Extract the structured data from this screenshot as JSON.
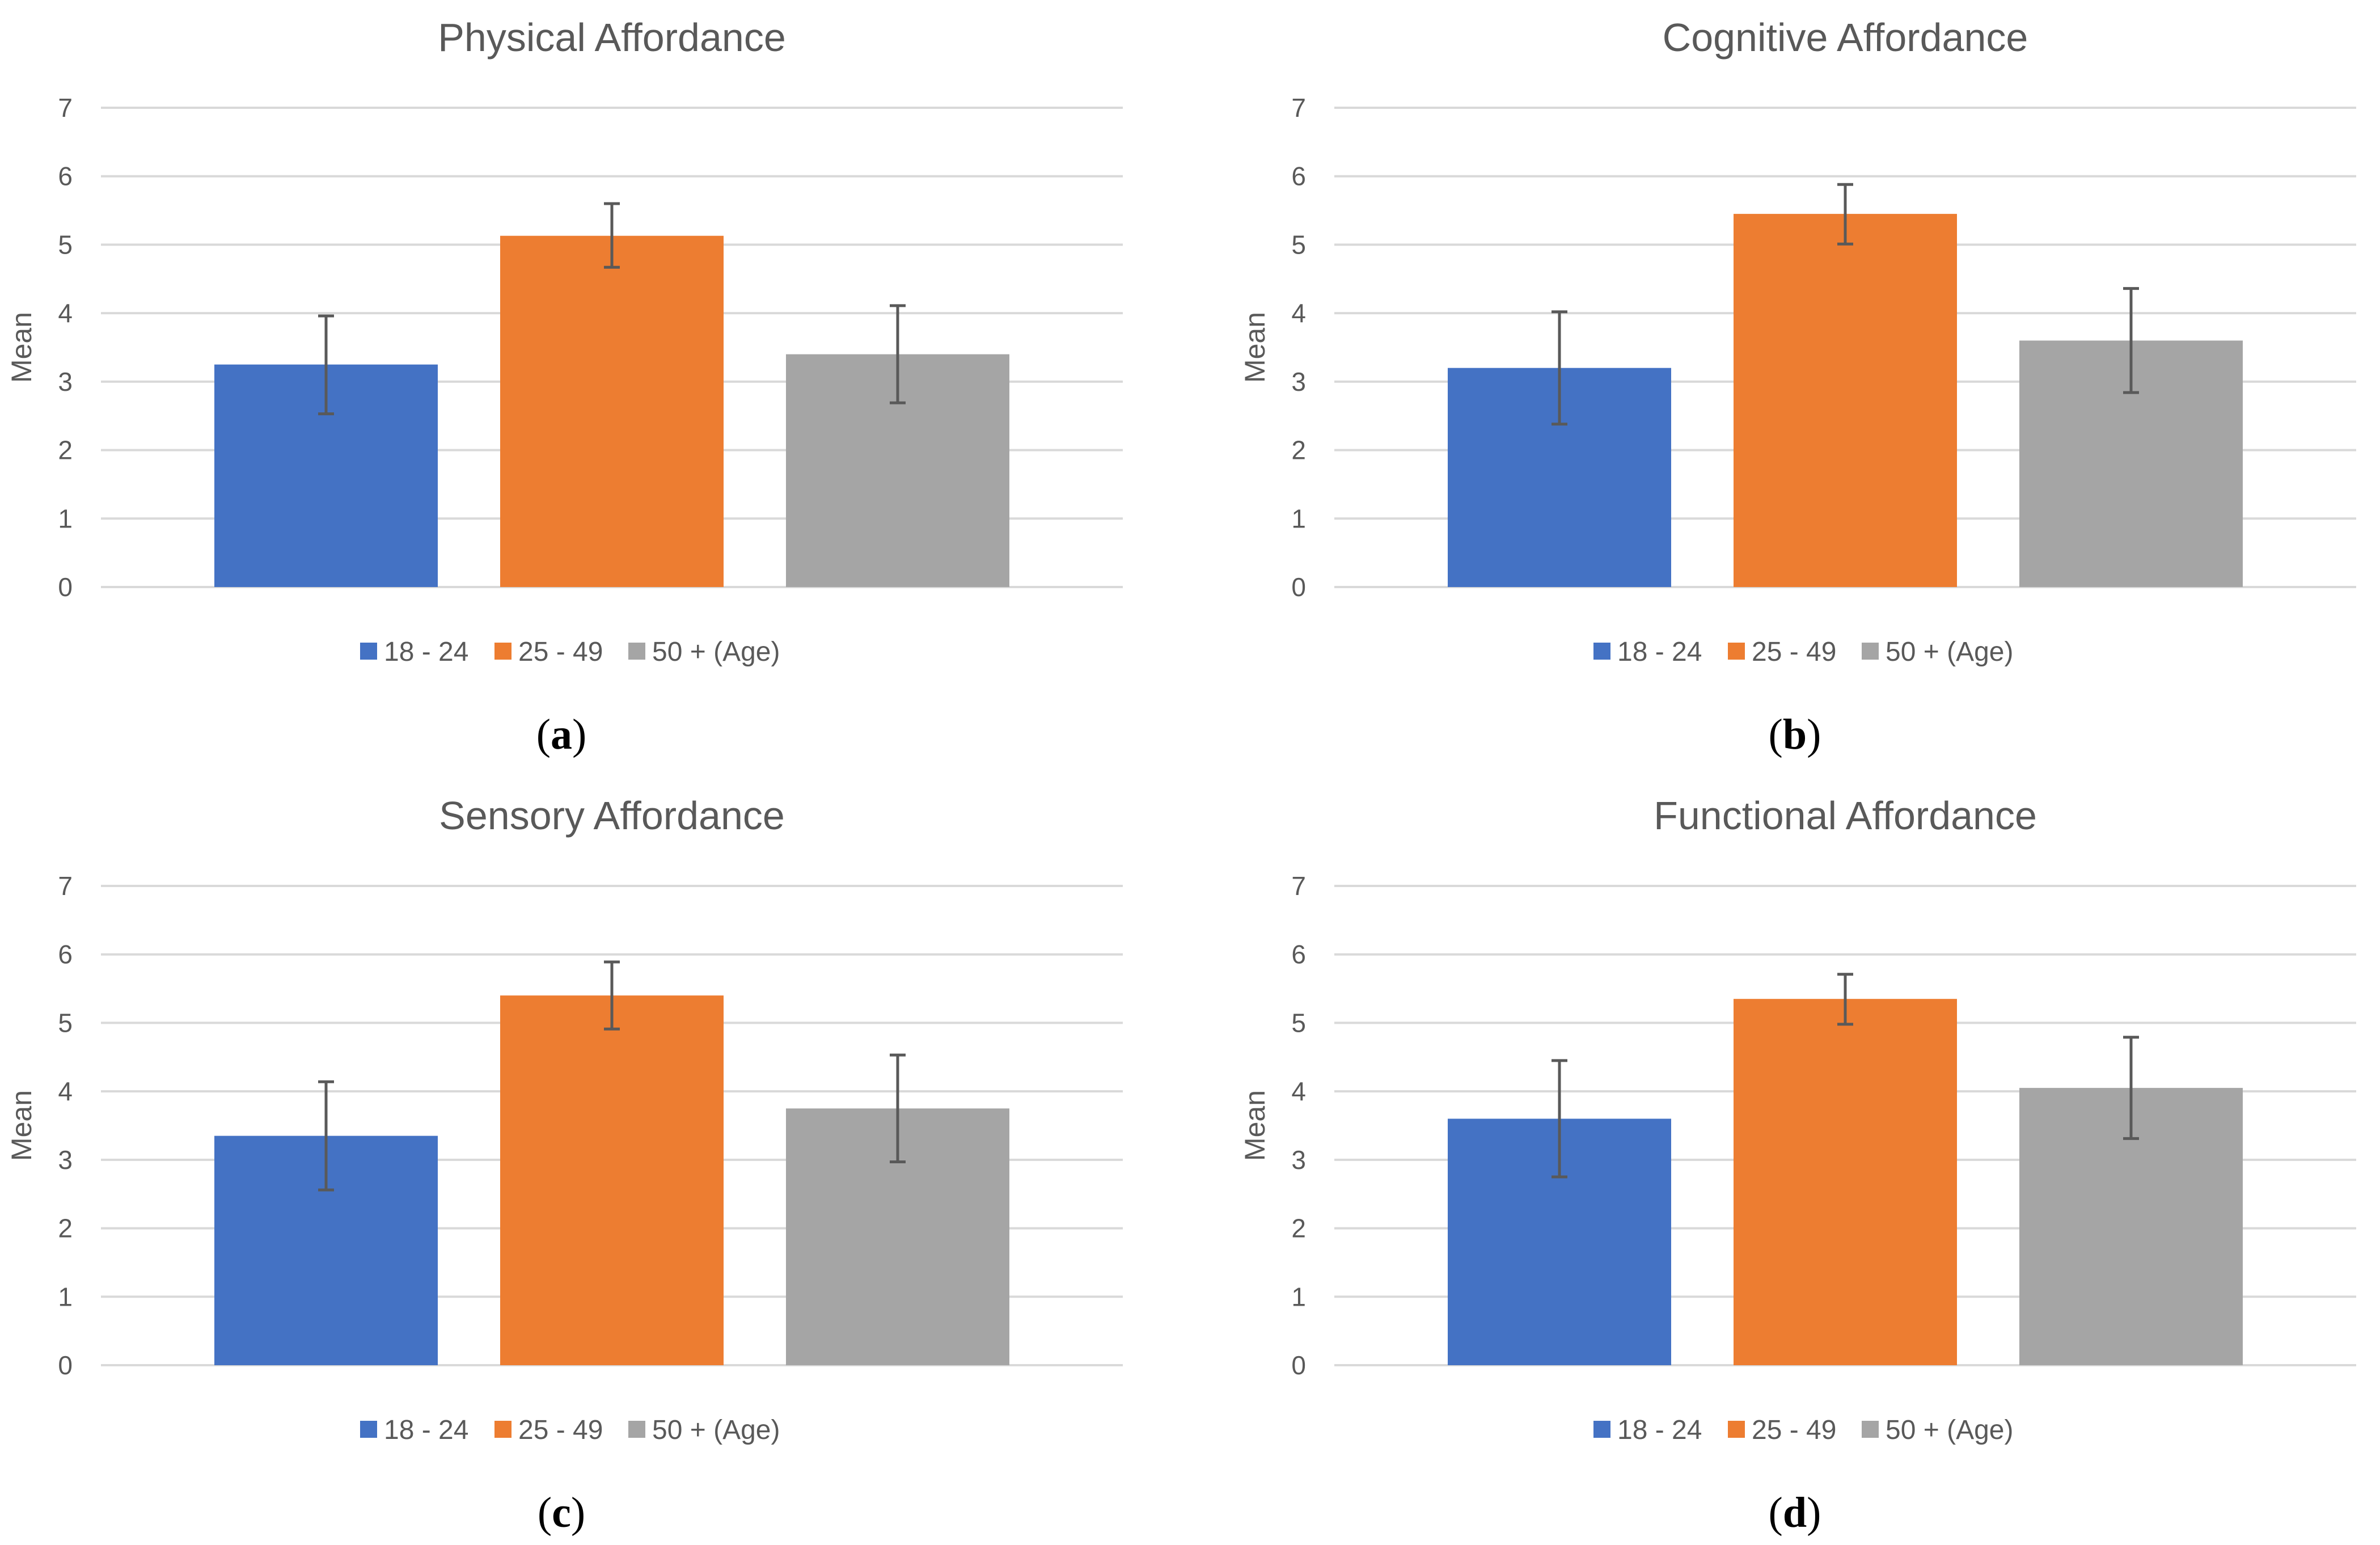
{
  "colors": {
    "series": [
      "#4472C4",
      "#ED7D31",
      "#A5A5A5"
    ],
    "grid": "#D9D9D9",
    "text": "#595959",
    "error_bar": "#595959"
  },
  "chart_data": [
    {
      "type": "bar",
      "title": "Physical Affordance",
      "caption_letter": "a",
      "categories": [
        "18 - 24",
        "25 - 49",
        "50 + (Age)"
      ],
      "values": [
        3.25,
        5.13,
        3.4
      ],
      "error_low": [
        2.53,
        4.67,
        2.69
      ],
      "error_high": [
        3.96,
        5.6,
        4.11
      ],
      "ylabel": "Mean",
      "ylim": [
        0,
        7
      ],
      "yticks": [
        "0",
        "1",
        "2",
        "3",
        "4",
        "5",
        "6",
        "7"
      ],
      "legend": [
        "18 - 24",
        "25 - 49",
        "50 + (Age)"
      ],
      "legend_position": "bottom",
      "grid": true
    },
    {
      "type": "bar",
      "title": "Cognitive Affordance",
      "caption_letter": "b",
      "categories": [
        "18 - 24",
        "25 - 49",
        "50 + (Age)"
      ],
      "values": [
        3.2,
        5.45,
        3.6
      ],
      "error_low": [
        2.38,
        5.01,
        2.84
      ],
      "error_high": [
        4.02,
        5.88,
        4.36
      ],
      "ylabel": "Mean",
      "ylim": [
        0,
        7
      ],
      "yticks": [
        "0",
        "1",
        "2",
        "3",
        "4",
        "5",
        "6",
        "7"
      ],
      "legend": [
        "18 - 24",
        "25 - 49",
        "50 + (Age)"
      ],
      "legend_position": "bottom",
      "grid": true
    },
    {
      "type": "bar",
      "title": "Sensory Affordance",
      "caption_letter": "c",
      "categories": [
        "18 - 24",
        "25 - 49",
        "50 + (Age)"
      ],
      "values": [
        3.35,
        5.4,
        3.75
      ],
      "error_low": [
        2.56,
        4.91,
        2.97
      ],
      "error_high": [
        4.14,
        5.89,
        4.53
      ],
      "ylabel": "Mean",
      "ylim": [
        0,
        7
      ],
      "yticks": [
        "0",
        "1",
        "2",
        "3",
        "4",
        "5",
        "6",
        "7"
      ],
      "legend": [
        "18 - 24",
        "25 - 49",
        "50 + (Age)"
      ],
      "legend_position": "bottom",
      "grid": true
    },
    {
      "type": "bar",
      "title": "Functional Affordance",
      "caption_letter": "d",
      "categories": [
        "18 - 24",
        "25 - 49",
        "50 + (Age)"
      ],
      "values": [
        3.6,
        5.35,
        4.05
      ],
      "error_low": [
        2.75,
        4.98,
        3.31
      ],
      "error_high": [
        4.45,
        5.71,
        4.79
      ],
      "ylabel": "Mean",
      "ylim": [
        0,
        7
      ],
      "yticks": [
        "0",
        "1",
        "2",
        "3",
        "4",
        "5",
        "6",
        "7"
      ],
      "legend": [
        "18 - 24",
        "25 - 49",
        "50 + (Age)"
      ],
      "legend_position": "bottom",
      "grid": true
    }
  ]
}
